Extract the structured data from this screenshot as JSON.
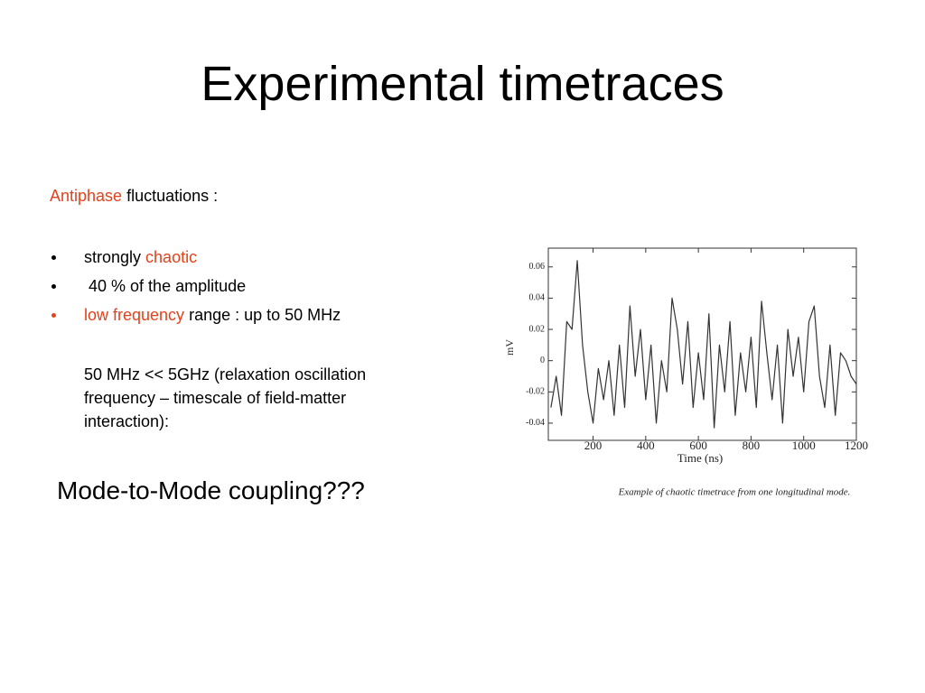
{
  "title": "Experimental timetraces",
  "intro": {
    "highlight": "Antiphase",
    "text": "fluctuations :"
  },
  "bullets": [
    {
      "text": "strongly",
      "highlight": "chaotic"
    },
    {
      "text": "40 % of the amplitude"
    },
    {
      "highlight": "low frequency",
      "text": "range : up to 50 MHz"
    }
  ],
  "note": "50 MHz << 5GHz (relaxation oscillation frequency – timescale of field-matter interaction):",
  "question": "Mode-to-Mode coupling???",
  "chart_data": {
    "type": "line",
    "xlabel": "Time (ns)",
    "ylabel": "mV",
    "caption": "Example of chaotic timetrace from one longitudinal mode.",
    "color": "#333333",
    "xlim": [
      30,
      1200
    ],
    "ylim": [
      -0.051,
      0.072
    ],
    "xticks": [
      200,
      400,
      600,
      800,
      1000,
      1200
    ],
    "yticks": [
      -0.04,
      -0.02,
      0,
      0.02,
      0.04,
      0.06
    ],
    "x": [
      40,
      60,
      80,
      100,
      120,
      140,
      160,
      180,
      200,
      220,
      240,
      260,
      280,
      300,
      320,
      340,
      360,
      380,
      400,
      420,
      440,
      460,
      480,
      500,
      520,
      540,
      560,
      580,
      600,
      620,
      640,
      660,
      680,
      700,
      720,
      740,
      760,
      780,
      800,
      820,
      840,
      860,
      880,
      900,
      920,
      940,
      960,
      980,
      1000,
      1020,
      1040,
      1060,
      1080,
      1100,
      1120,
      1140,
      1160,
      1180,
      1200
    ],
    "values": [
      -0.03,
      -0.01,
      -0.035,
      0.025,
      0.02,
      0.064,
      0.01,
      -0.02,
      -0.04,
      -0.005,
      -0.025,
      0.0,
      -0.035,
      0.01,
      -0.03,
      0.035,
      -0.01,
      0.02,
      -0.025,
      0.01,
      -0.04,
      0.0,
      -0.02,
      0.04,
      0.02,
      -0.015,
      0.025,
      -0.03,
      0.005,
      -0.025,
      0.03,
      -0.043,
      0.01,
      -0.02,
      0.025,
      -0.035,
      0.005,
      -0.02,
      0.015,
      -0.03,
      0.038,
      0.005,
      -0.025,
      0.01,
      -0.04,
      0.02,
      -0.01,
      0.015,
      -0.02,
      0.025,
      0.035,
      -0.01,
      -0.03,
      0.01,
      -0.035,
      0.005,
      0.0,
      -0.01,
      -0.015
    ]
  }
}
